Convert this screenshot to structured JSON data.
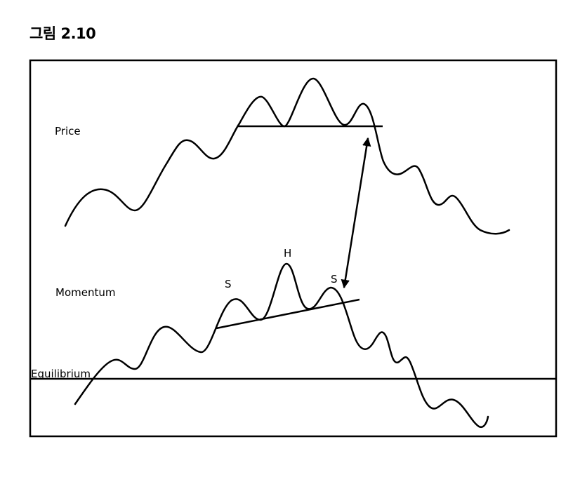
{
  "figure": {
    "title": "그림 2.10"
  },
  "labels": {
    "price": "Price",
    "momentum": "Momentum",
    "equilibrium": "Equilibrium",
    "left_shoulder": "S",
    "head": "H",
    "right_shoulder": "S"
  }
}
